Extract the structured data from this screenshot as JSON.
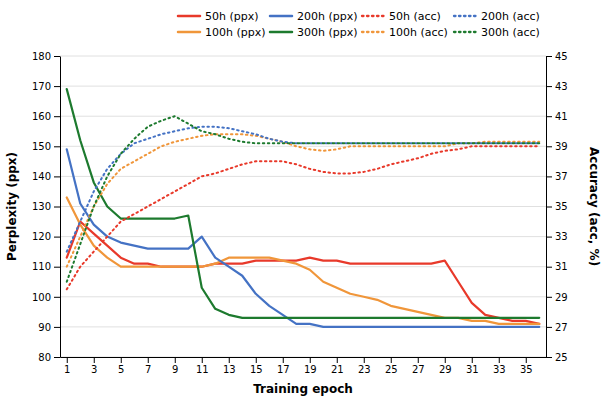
{
  "chart_data": {
    "type": "line",
    "xlabel": "Training epoch",
    "ylabel": "Perplexity (ppx)",
    "y2label": "Accuracy (acc, %)",
    "x": [
      1,
      2,
      3,
      4,
      5,
      6,
      7,
      8,
      9,
      10,
      11,
      12,
      13,
      14,
      15,
      16,
      17,
      18,
      19,
      20,
      21,
      22,
      23,
      24,
      25,
      26,
      27,
      28,
      29,
      30,
      31,
      32,
      33,
      34,
      35,
      36
    ],
    "xlim": [
      0.5,
      36.5
    ],
    "xticks": [
      1,
      3,
      5,
      7,
      9,
      11,
      13,
      15,
      17,
      19,
      21,
      23,
      25,
      27,
      29,
      31,
      33,
      35
    ],
    "ylim": [
      80,
      180
    ],
    "yticks": [
      80,
      90,
      100,
      110,
      120,
      130,
      140,
      150,
      160,
      170,
      180
    ],
    "y2lim": [
      25,
      45
    ],
    "y2ticks": [
      25,
      27,
      29,
      31,
      33,
      35,
      37,
      39,
      41,
      43,
      45
    ],
    "grid": "y",
    "legend": "upper right",
    "series": [
      {
        "name": "50h (ppx)",
        "color": "#e8392a",
        "line_style": "solid",
        "values": [
          113,
          125,
          121,
          117,
          113,
          111,
          111,
          110,
          110,
          110,
          110,
          111,
          111,
          111,
          112,
          112,
          112,
          112,
          113,
          112,
          112,
          111,
          111,
          111,
          111,
          111,
          111,
          111,
          112,
          105,
          98,
          94,
          93,
          92,
          92,
          91
        ]
      },
      {
        "name": "100h (ppx)",
        "color": "#f0963a",
        "line_style": "solid",
        "values": [
          133,
          124,
          117,
          113,
          110,
          110,
          110,
          110,
          110,
          110,
          110,
          111,
          113,
          113,
          113,
          113,
          112,
          111,
          109,
          105,
          103,
          101,
          100,
          99,
          97,
          96,
          95,
          94,
          93,
          93,
          92,
          92,
          91,
          91,
          91,
          91
        ]
      },
      {
        "name": "200h (ppx)",
        "color": "#4472c4",
        "line_style": "solid",
        "values": [
          149,
          131,
          124,
          120,
          118,
          117,
          116,
          116,
          116,
          116,
          120,
          113,
          110,
          107,
          101,
          97,
          94,
          91,
          91,
          90,
          90,
          90,
          90,
          90,
          90,
          90,
          90,
          90,
          90,
          90,
          90,
          90,
          90,
          90,
          90,
          90
        ]
      },
      {
        "name": "300h (ppx)",
        "color": "#1d7a2e",
        "line_style": "solid",
        "values": [
          169,
          152,
          138,
          130,
          126,
          126,
          126,
          126,
          126,
          127,
          103,
          96,
          94,
          93,
          93,
          93,
          93,
          93,
          93,
          93,
          93,
          93,
          93,
          93,
          93,
          93,
          93,
          93,
          93,
          93,
          93,
          93,
          93,
          93,
          93,
          93
        ]
      },
      {
        "name": "50h (acc)",
        "color": "#e8392a",
        "line_style": "dotted",
        "axis": "y2",
        "values": [
          29.5,
          31.0,
          32.0,
          33.0,
          34.0,
          34.5,
          35.0,
          35.5,
          36.0,
          36.5,
          37.0,
          37.2,
          37.5,
          37.8,
          38.0,
          38.0,
          38.0,
          37.8,
          37.5,
          37.3,
          37.2,
          37.2,
          37.3,
          37.5,
          37.8,
          38.0,
          38.2,
          38.5,
          38.7,
          38.8,
          39.0,
          39.0,
          39.0,
          39.0,
          39.0,
          39.0
        ]
      },
      {
        "name": "100h (acc)",
        "color": "#f0963a",
        "line_style": "dotted",
        "axis": "y2",
        "values": [
          31.0,
          33.0,
          35.0,
          36.5,
          37.5,
          38.0,
          38.5,
          39.0,
          39.3,
          39.5,
          39.7,
          39.8,
          39.8,
          39.8,
          39.7,
          39.5,
          39.3,
          39.0,
          38.8,
          38.7,
          38.8,
          39.0,
          39.0,
          39.0,
          39.0,
          39.0,
          39.0,
          39.0,
          39.0,
          39.2,
          39.2,
          39.3,
          39.3,
          39.3,
          39.3,
          39.3
        ]
      },
      {
        "name": "200h (acc)",
        "color": "#4472c4",
        "line_style": "dotted",
        "axis": "y2",
        "values": [
          32.0,
          34.0,
          36.0,
          37.5,
          38.5,
          39.2,
          39.5,
          39.8,
          40.0,
          40.2,
          40.3,
          40.3,
          40.2,
          40.0,
          39.8,
          39.5,
          39.3,
          39.2,
          39.2,
          39.2,
          39.2,
          39.2,
          39.2,
          39.2,
          39.2,
          39.2,
          39.2,
          39.2,
          39.2,
          39.2,
          39.2,
          39.2,
          39.2,
          39.2,
          39.2,
          39.2
        ]
      },
      {
        "name": "300h (acc)",
        "color": "#1d7a2e",
        "line_style": "dotted",
        "axis": "y2",
        "values": [
          30.0,
          32.5,
          35.0,
          37.0,
          38.5,
          39.5,
          40.3,
          40.7,
          41.0,
          40.5,
          40.0,
          39.8,
          39.5,
          39.3,
          39.2,
          39.2,
          39.2,
          39.2,
          39.2,
          39.2,
          39.2,
          39.2,
          39.2,
          39.2,
          39.2,
          39.2,
          39.2,
          39.2,
          39.2,
          39.2,
          39.2,
          39.2,
          39.2,
          39.2,
          39.2,
          39.2
        ]
      }
    ]
  }
}
